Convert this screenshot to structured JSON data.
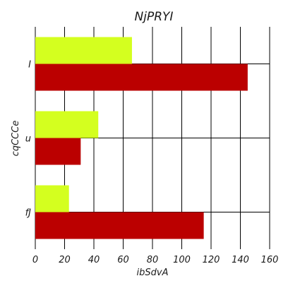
{
  "chart_data": {
    "type": "bar",
    "orientation": "horizontal",
    "title": "NjPRYI",
    "xlabel": "ibSdvA",
    "ylabel": "cqCCCe",
    "categories": [
      "I",
      "u",
      "fJ"
    ],
    "series": [
      {
        "color": "#d4ff1f",
        "values": [
          66,
          43,
          23
        ]
      },
      {
        "color": "#bb0000",
        "values": [
          145,
          31,
          115
        ]
      }
    ],
    "xlim": [
      0,
      160
    ],
    "xticks": [
      0,
      20,
      40,
      60,
      80,
      100,
      120,
      140,
      160
    ],
    "grid": true,
    "legend": "none"
  }
}
